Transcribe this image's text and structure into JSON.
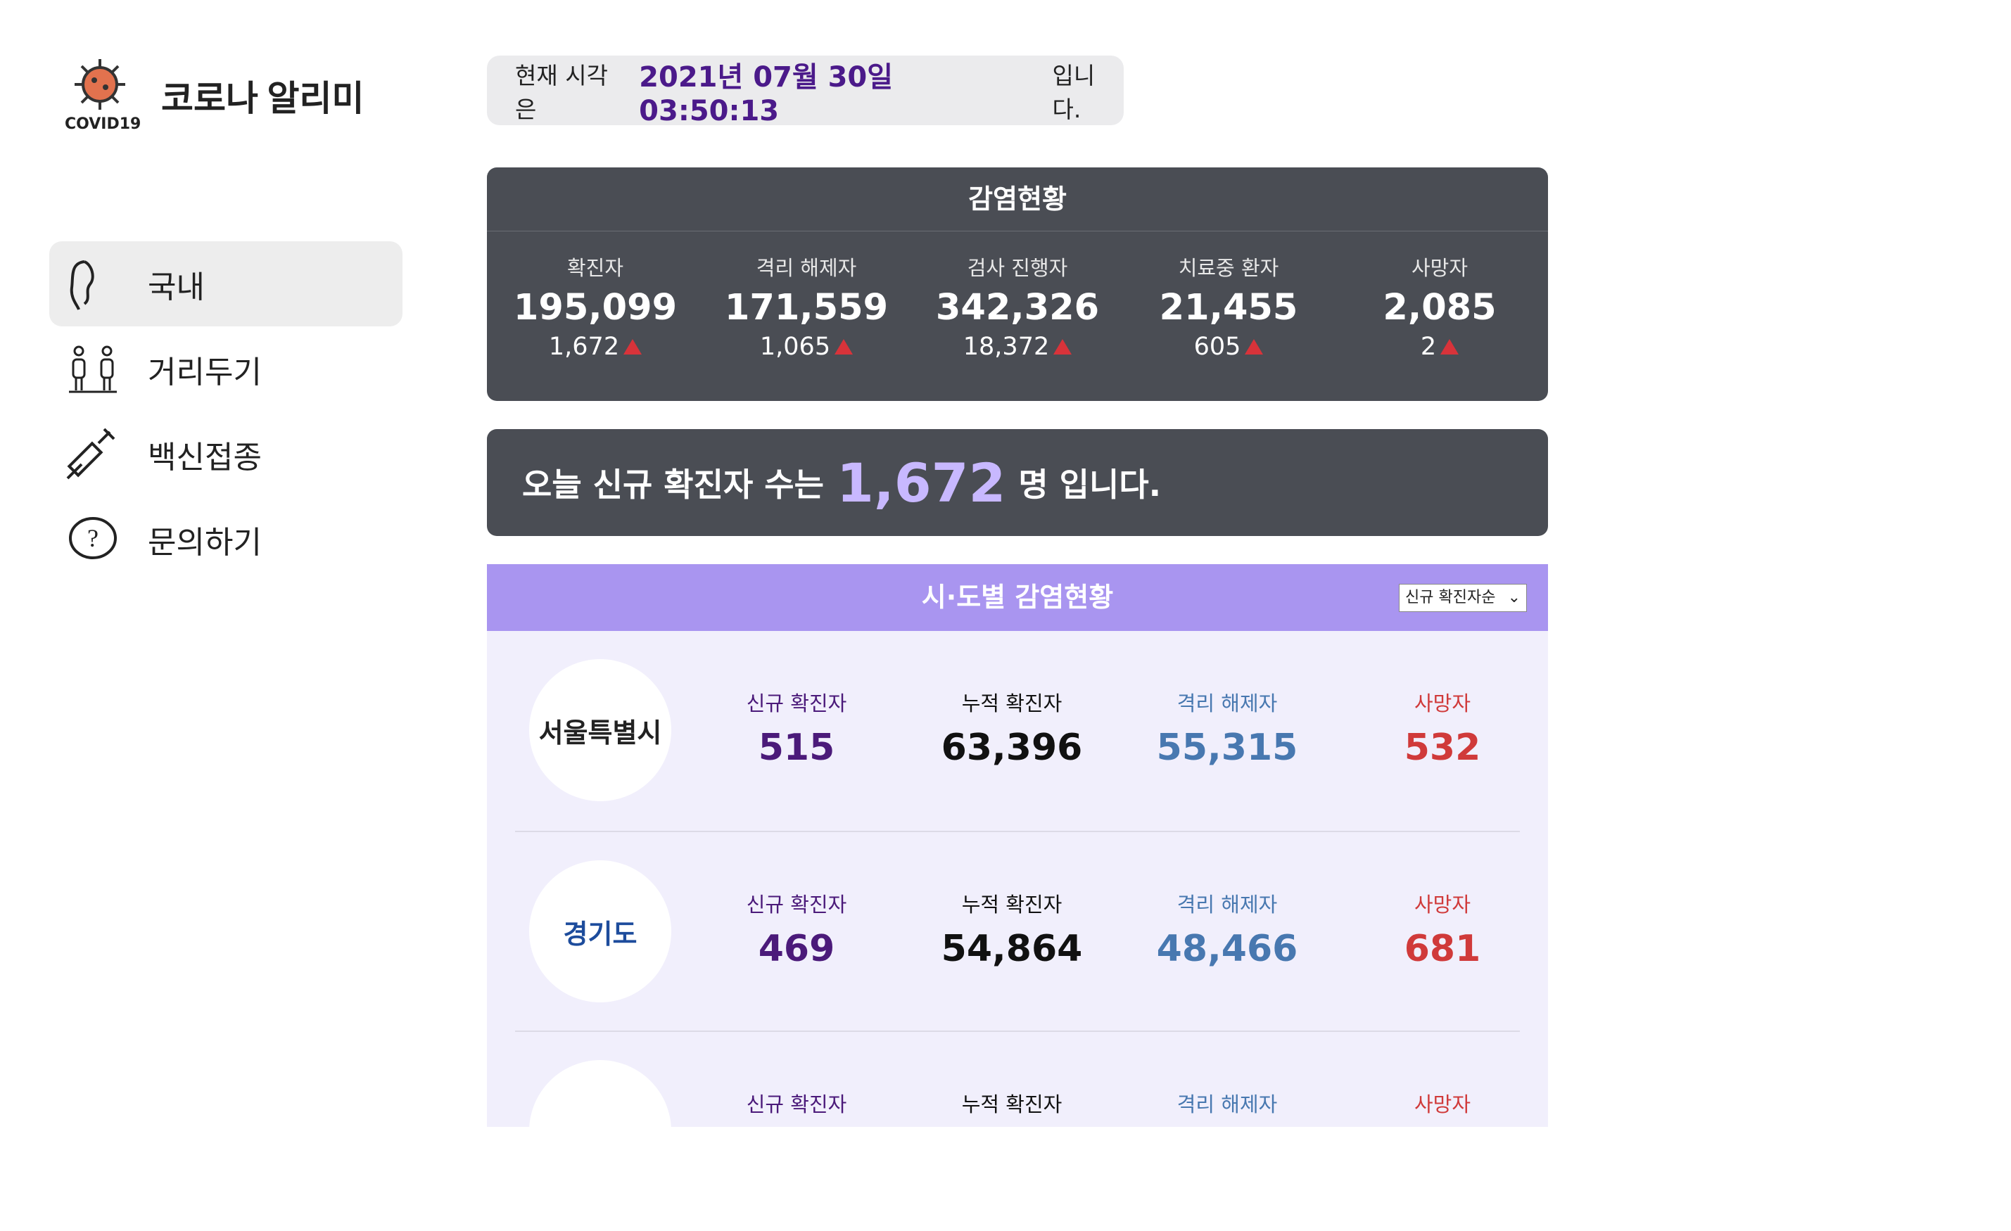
{
  "logo": {
    "badge": "COVID19",
    "title": "코로나 알리미"
  },
  "nav": [
    "국내",
    "거리두기",
    "백신접종",
    "문의하기"
  ],
  "clock": {
    "prefix": "현재 시각은",
    "time": "2021년 07월 30일 03:50:13",
    "suffix": "입니다."
  },
  "status": {
    "title": "감염현황",
    "items": [
      {
        "label": "확진자",
        "value": "195,099",
        "delta": "1,672"
      },
      {
        "label": "격리 해제자",
        "value": "171,559",
        "delta": "1,065"
      },
      {
        "label": "검사 진행자",
        "value": "342,326",
        "delta": "18,372"
      },
      {
        "label": "치료중 환자",
        "value": "21,455",
        "delta": "605"
      },
      {
        "label": "사망자",
        "value": "2,085",
        "delta": "2"
      }
    ]
  },
  "banner": {
    "prefix": "오늘 신규 확진자 수는",
    "count": "1,672",
    "suffix": "명 입니다."
  },
  "regions": {
    "title": "시·도별 감염현황",
    "sort": "신규 확진자순",
    "rows": [
      {
        "logo": "서울특별시",
        "cells": [
          {
            "label": "신규 확진자",
            "value": "515"
          },
          {
            "label": "누적 확진자",
            "value": "63,396"
          },
          {
            "label": "격리 해제자",
            "value": "55,315"
          },
          {
            "label": "사망자",
            "value": "532"
          }
        ]
      },
      {
        "logo": "경기도",
        "cells": [
          {
            "label": "신규 확진자",
            "value": "469"
          },
          {
            "label": "누적 확진자",
            "value": "54,864"
          },
          {
            "label": "격리 해제자",
            "value": "48,466"
          },
          {
            "label": "사망자",
            "value": "681"
          }
        ]
      },
      {
        "cells": [
          {
            "label": "신규 확진자"
          },
          {
            "label": "누적 확진자"
          },
          {
            "label": "격리 해제자"
          },
          {
            "label": "사망자"
          }
        ]
      }
    ]
  }
}
